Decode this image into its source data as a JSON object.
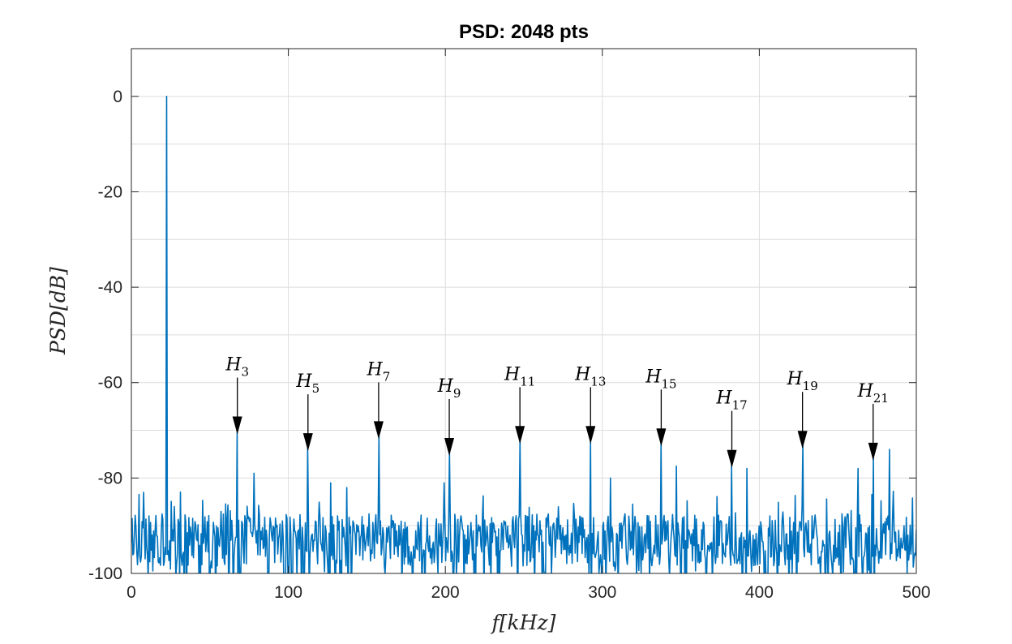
{
  "chart_data": {
    "type": "line",
    "title": "PSD: 2048 pts",
    "xlabel": "f[kHz]",
    "ylabel": "PSD[dB]",
    "xlim": [
      0,
      500
    ],
    "ylim": [
      -100,
      10
    ],
    "xticks": [
      0,
      100,
      200,
      300,
      400,
      500
    ],
    "yticks": [
      -100,
      -80,
      -60,
      -40,
      -20,
      0
    ],
    "grid": true,
    "series_color": "#0072BD",
    "fundamental": {
      "x": 22.5,
      "y": 0
    },
    "harmonics": [
      {
        "label": "H",
        "sub": "3",
        "x": 67.5,
        "peak": -70
      },
      {
        "label": "H",
        "sub": "5",
        "x": 112.5,
        "peak": -73.5
      },
      {
        "label": "H",
        "sub": "7",
        "x": 157.5,
        "peak": -71
      },
      {
        "label": "H",
        "sub": "9",
        "x": 202.5,
        "peak": -74.5
      },
      {
        "label": "H",
        "sub": "11",
        "x": 247.5,
        "peak": -72
      },
      {
        "label": "H",
        "sub": "13",
        "x": 292.5,
        "peak": -72
      },
      {
        "label": "H",
        "sub": "15",
        "x": 337.5,
        "peak": -72.5
      },
      {
        "label": "H",
        "sub": "17",
        "x": 382.5,
        "peak": -77
      },
      {
        "label": "H",
        "sub": "19",
        "x": 427.5,
        "peak": -73
      },
      {
        "label": "H",
        "sub": "21",
        "x": 472.5,
        "peak": -75.5
      }
    ],
    "extra_peaks": [
      {
        "x": 78,
        "y": -79
      },
      {
        "x": 127,
        "y": -81
      },
      {
        "x": 137,
        "y": -82
      },
      {
        "x": 199,
        "y": -81
      },
      {
        "x": 305,
        "y": -80
      },
      {
        "x": 347,
        "y": -77.5
      },
      {
        "x": 392,
        "y": -78
      },
      {
        "x": 463,
        "y": -78
      },
      {
        "x": 483,
        "y": -74
      }
    ]
  }
}
